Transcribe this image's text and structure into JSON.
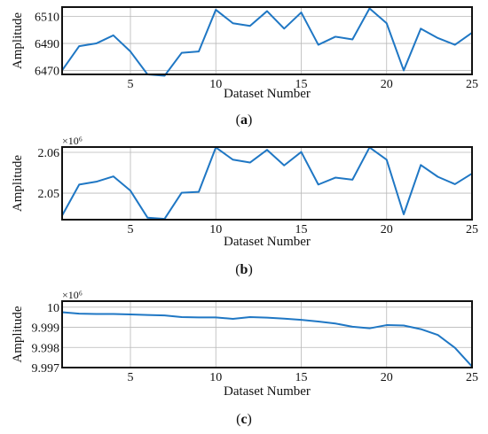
{
  "chart_data": [
    {
      "type": "line",
      "panel_label": "a",
      "xlabel": "Dataset Number",
      "ylabel": "Amplitude",
      "exponent_label": "",
      "xlim": [
        1,
        25
      ],
      "ylim": [
        6467,
        6517
      ],
      "xticks": [
        5,
        10,
        15,
        20,
        25
      ],
      "yticks": [
        6470,
        6490,
        6510
      ],
      "ytick_labels": [
        "6470",
        "6490",
        "6510"
      ],
      "grid": true,
      "series": [
        {
          "name": "",
          "color": "#1f77c4",
          "x": [
            1,
            2,
            3,
            4,
            5,
            6,
            7,
            8,
            9,
            10,
            11,
            12,
            13,
            14,
            15,
            16,
            17,
            18,
            19,
            20,
            21,
            22,
            23,
            24,
            25
          ],
          "y": [
            6470,
            6488,
            6490,
            6496,
            6484,
            6467,
            6466,
            6483,
            6484,
            6515,
            6505,
            6503,
            6514,
            6501,
            6513,
            6489,
            6495,
            6493,
            6516,
            6505,
            6470,
            6501,
            6494,
            6489,
            6498
          ]
        }
      ]
    },
    {
      "type": "line",
      "panel_label": "b",
      "xlabel": "Dataset Number",
      "ylabel": "Amplitude",
      "exponent_label": "×10⁶",
      "xlim": [
        1,
        25
      ],
      "ylim": [
        2.0435,
        2.0613
      ],
      "xticks": [
        5,
        10,
        15,
        20,
        25
      ],
      "yticks": [
        2.05,
        2.06
      ],
      "ytick_labels": [
        "2.05",
        "2.06"
      ],
      "grid": true,
      "series": [
        {
          "name": "",
          "color": "#1f77c4",
          "x": [
            1,
            2,
            3,
            4,
            5,
            6,
            7,
            8,
            9,
            10,
            11,
            12,
            13,
            14,
            15,
            16,
            17,
            18,
            19,
            20,
            21,
            22,
            23,
            24,
            25
          ],
          "y": [
            2.0445,
            2.0521,
            2.0528,
            2.0541,
            2.0506,
            2.044,
            2.0437,
            2.0501,
            2.0503,
            2.0612,
            2.0582,
            2.0575,
            2.0606,
            2.0568,
            2.0601,
            2.0521,
            2.0538,
            2.0533,
            2.0612,
            2.0582,
            2.0448,
            2.0569,
            2.054,
            2.0522,
            2.0548
          ]
        }
      ]
    },
    {
      "type": "line",
      "panel_label": "c",
      "xlabel": "Dataset Number",
      "ylabel": "Amplitude",
      "exponent_label": "×10⁶",
      "xlim": [
        1,
        25
      ],
      "ylim": [
        9.997,
        10.0003
      ],
      "xticks": [
        5,
        10,
        15,
        20,
        25
      ],
      "yticks": [
        9.997,
        9.998,
        9.999,
        10.0
      ],
      "ytick_labels": [
        "9.997",
        "9.998",
        "9.999",
        "10"
      ],
      "grid": true,
      "series": [
        {
          "name": "",
          "color": "#1f77c4",
          "x": [
            1,
            2,
            3,
            4,
            5,
            6,
            7,
            8,
            9,
            10,
            11,
            12,
            13,
            14,
            15,
            16,
            17,
            18,
            19,
            20,
            21,
            22,
            23,
            24,
            25
          ],
          "y": [
            9.99975,
            9.99968,
            9.99966,
            9.99966,
            9.99964,
            9.99961,
            9.99959,
            9.99951,
            9.99949,
            9.99949,
            9.99942,
            9.99951,
            9.99948,
            9.99943,
            9.99937,
            9.99929,
            9.99919,
            9.99903,
            9.99895,
            9.99911,
            9.99909,
            9.99891,
            9.99862,
            9.99798,
            9.99705
          ]
        }
      ]
    }
  ]
}
